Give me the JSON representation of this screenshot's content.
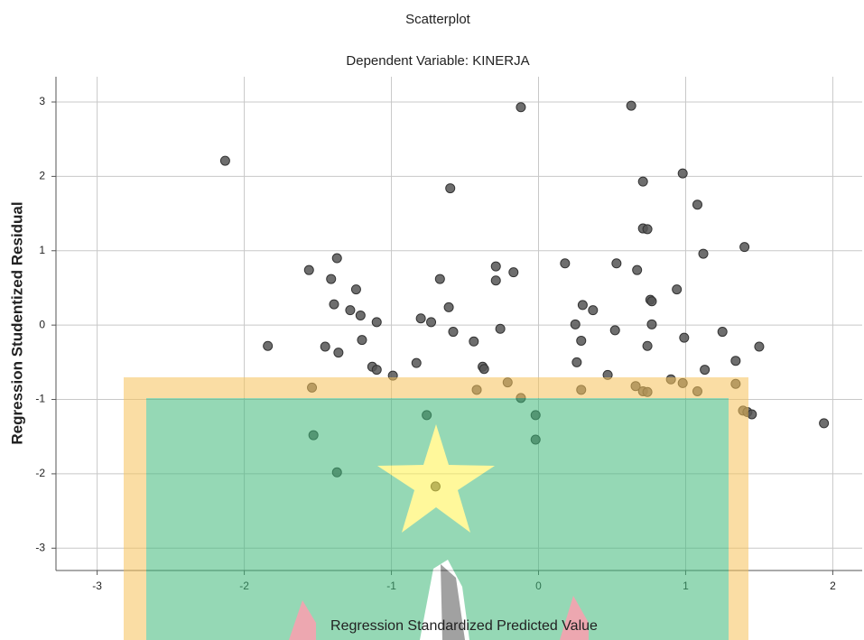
{
  "chart_data": {
    "type": "scatter",
    "title": "Scatterplot",
    "subtitle": "Dependent Variable: KINERJA",
    "x_label": "Regression Standardized Predicted Value",
    "y_label": "Regression Studentized Residual",
    "color": "#555555",
    "grid": true,
    "xlim": [
      -3.28,
      2.2
    ],
    "ylim": [
      -3.3,
      3.34
    ],
    "xticks": [
      -3,
      -2,
      -1,
      0,
      1,
      2
    ],
    "yticks": [
      -3,
      -2,
      -1,
      0,
      1,
      2,
      3
    ],
    "x": [
      -2.13,
      -0.12,
      0.63,
      -0.6,
      0.98,
      0.71,
      1.08,
      0.71,
      0.74,
      1.12,
      1.4,
      -1.37,
      -1.56,
      -1.41,
      -0.67,
      -0.29,
      -0.29,
      -0.17,
      0.18,
      0.53,
      0.67,
      -1.24,
      -1.39,
      -1.28,
      -1.21,
      -1.1,
      -0.61,
      -0.8,
      -0.73,
      -0.58,
      -0.26,
      0.3,
      0.37,
      0.25,
      0.52,
      0.76,
      0.77,
      0.94,
      0.77,
      0.99,
      1.25,
      -1.84,
      -1.45,
      -1.36,
      -1.2,
      -1.13,
      -1.1,
      -0.99,
      -0.83,
      -0.44,
      -0.38,
      -0.37,
      0.29,
      0.26,
      0.74,
      0.47,
      0.9,
      0.98,
      1.13,
      1.34,
      1.5,
      -1.54,
      -0.42,
      -0.21,
      -0.12,
      0.29,
      0.66,
      0.71,
      0.74,
      1.08,
      1.34,
      1.39,
      1.42,
      1.45,
      1.94,
      -0.76,
      -0.02,
      -0.02,
      -1.53,
      -1.37,
      -0.7
    ],
    "y": [
      2.21,
      2.93,
      2.95,
      1.84,
      2.04,
      1.93,
      1.62,
      1.3,
      1.29,
      0.96,
      1.05,
      0.9,
      0.74,
      0.62,
      0.62,
      0.6,
      0.79,
      0.71,
      0.83,
      0.83,
      0.74,
      0.48,
      0.28,
      0.2,
      0.13,
      0.04,
      0.24,
      0.09,
      0.04,
      -0.09,
      -0.05,
      0.27,
      0.2,
      0.01,
      -0.07,
      0.34,
      0.32,
      0.48,
      0.01,
      -0.17,
      -0.09,
      -0.28,
      -0.29,
      -0.37,
      -0.2,
      -0.56,
      -0.6,
      -0.68,
      -0.51,
      -0.22,
      -0.56,
      -0.59,
      -0.21,
      -0.5,
      -0.28,
      -0.67,
      -0.73,
      -0.78,
      -0.6,
      -0.48,
      -0.29,
      -0.84,
      -0.87,
      -0.77,
      -0.98,
      -0.87,
      -0.82,
      -0.89,
      -0.9,
      -0.89,
      -0.79,
      -1.15,
      -1.17,
      -1.2,
      -1.32,
      -1.21,
      -1.21,
      -1.54,
      -1.48,
      -1.98,
      -2.17
    ]
  }
}
